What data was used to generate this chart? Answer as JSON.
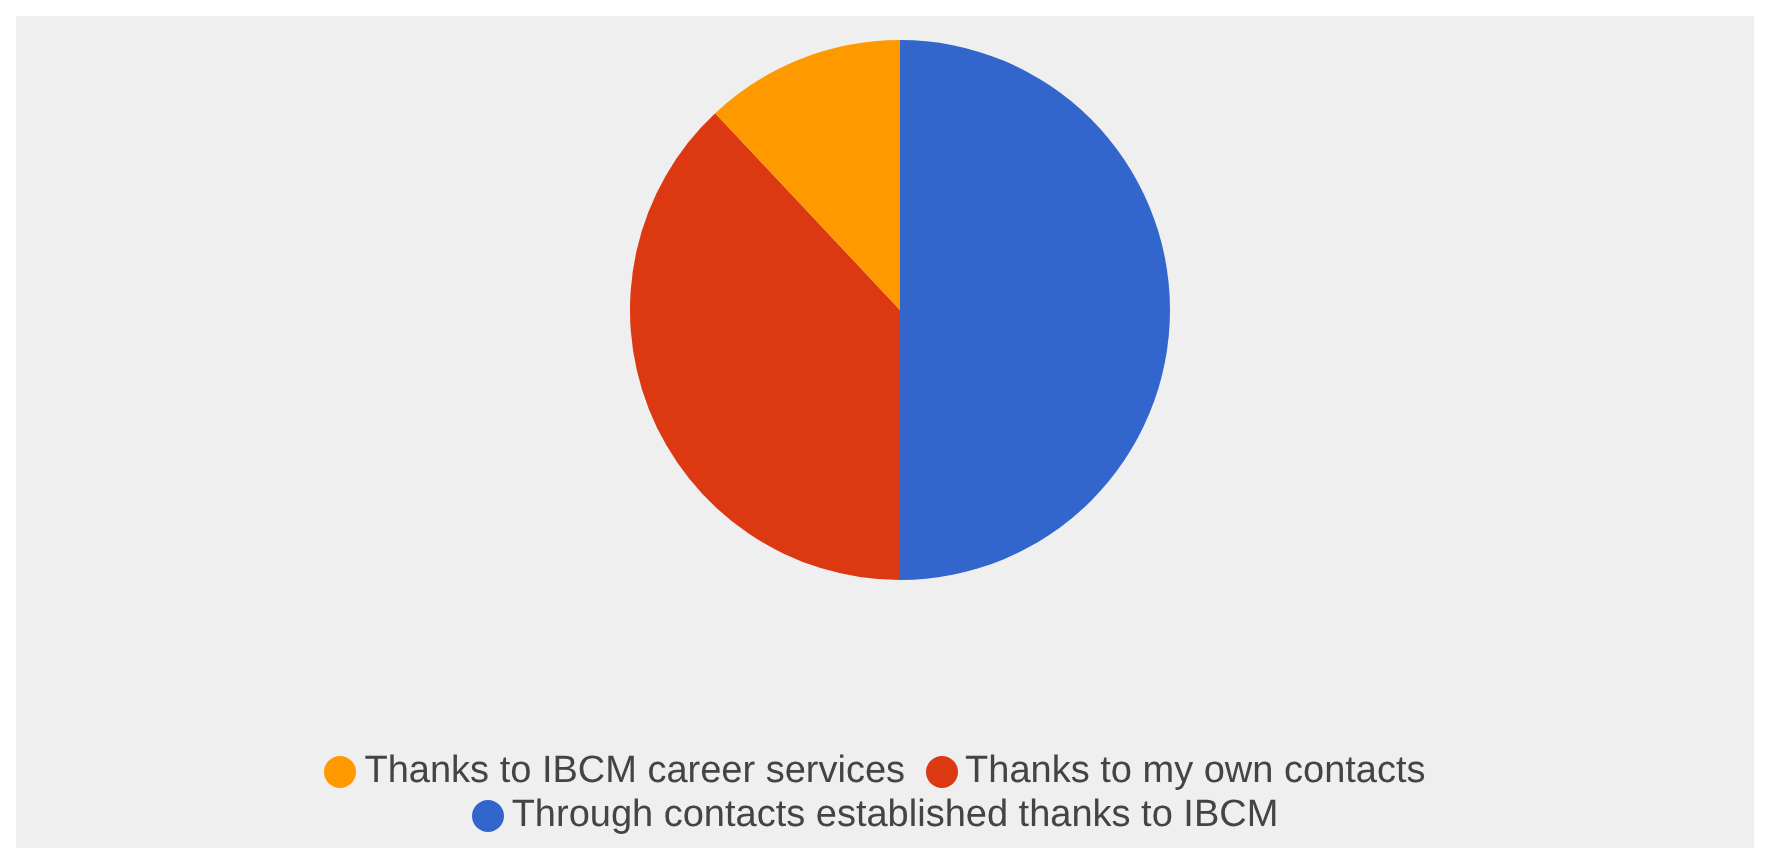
{
  "chart_data": {
    "type": "pie",
    "categories": [
      "Through contacts established thanks to IBCM",
      "Thanks to my own contacts",
      "Thanks to IBCM career services"
    ],
    "values": [
      50,
      38,
      12
    ],
    "colors": [
      "#3366cc",
      "#dc3912",
      "#ff9900"
    ],
    "legend": "bottom"
  }
}
